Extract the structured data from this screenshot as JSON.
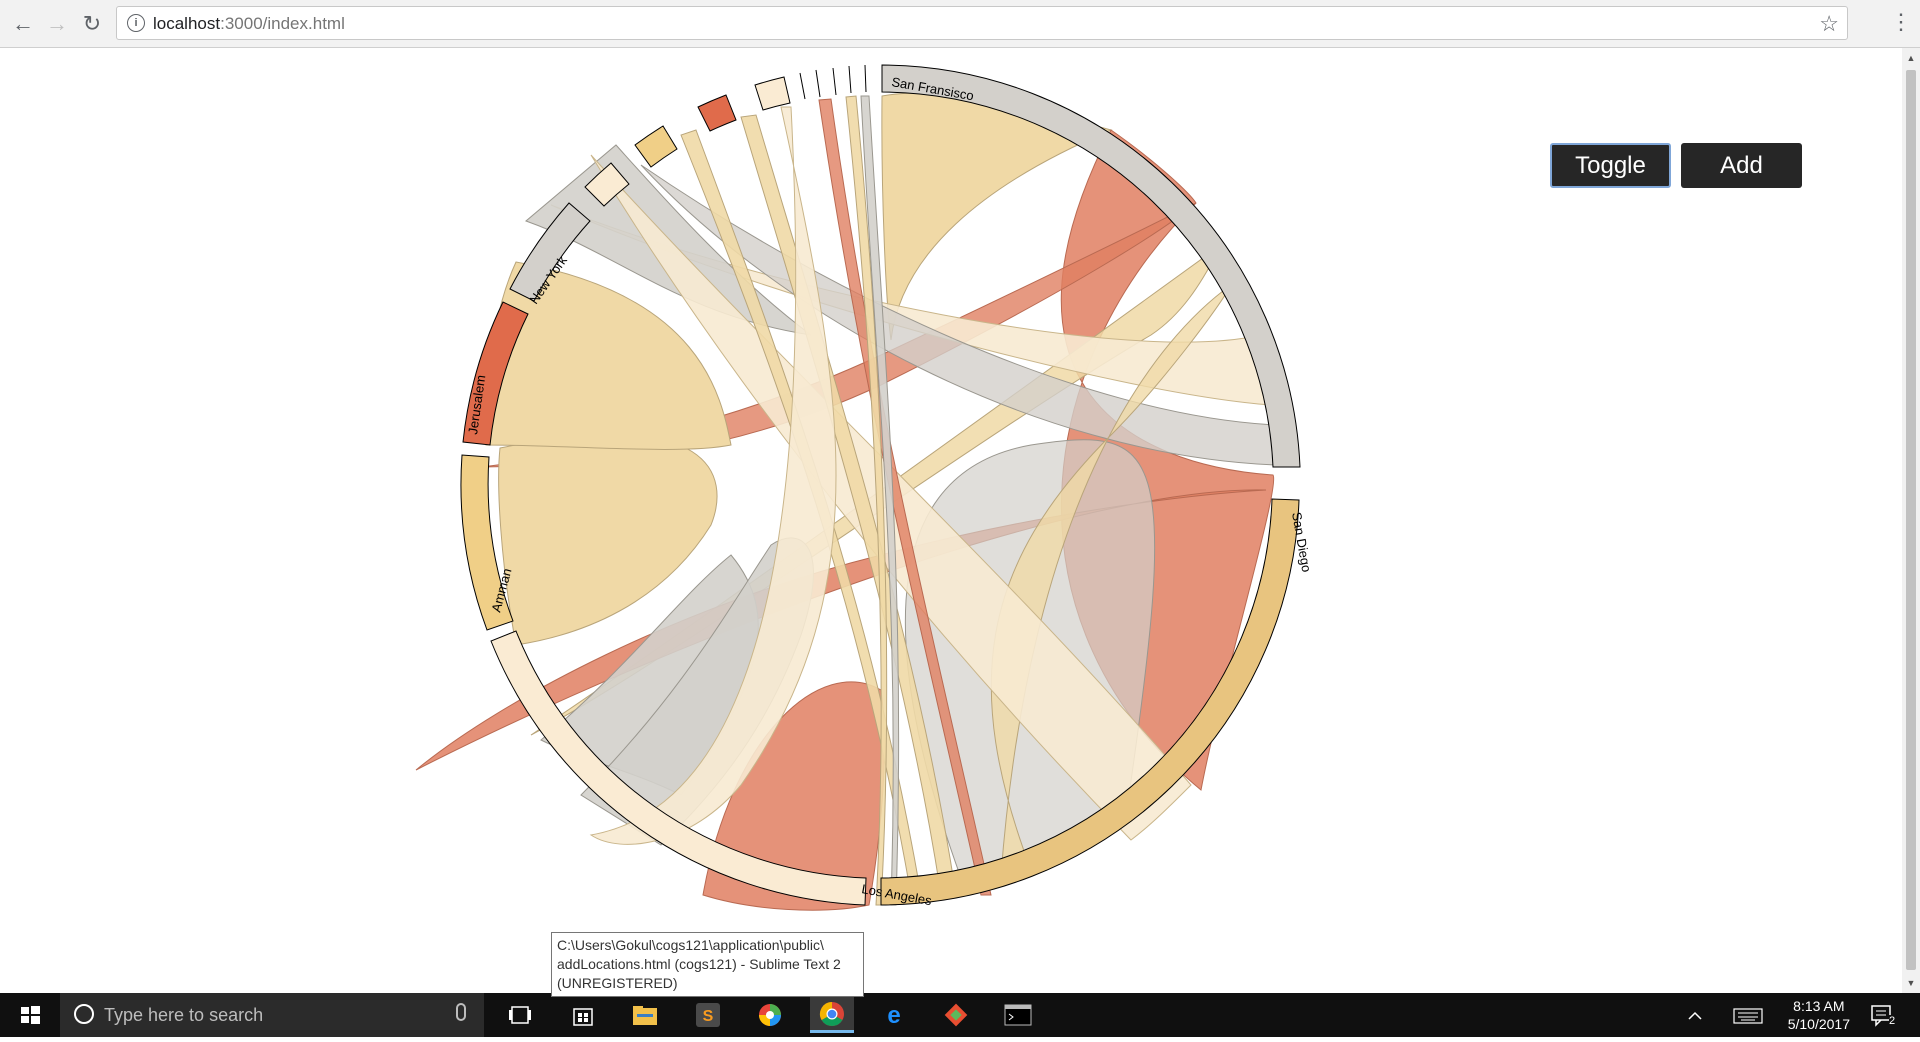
{
  "browser": {
    "url_host": "localhost",
    "url_path": ":3000/index.html"
  },
  "buttons": {
    "toggle_label": "Toggle",
    "add_label": "Add"
  },
  "chord": {
    "groups": [
      {
        "label": "San Fransisco",
        "color": "#d3d0cb"
      },
      {
        "label": "San Diego",
        "color": "#e8c47f"
      },
      {
        "label": "Los Angeles",
        "color": "#faebd3"
      },
      {
        "label": "Amman",
        "color": "#f0cf87"
      },
      {
        "label": "Jerusalem",
        "color": "#e06b4b"
      },
      {
        "label": "New York",
        "color": "#d3d0cb"
      }
    ]
  },
  "tooltip": {
    "line1": "C:\\Users\\Gokul\\cogs121\\application\\public\\",
    "line2": "addLocations.html (cogs121) - Sublime Text 2",
    "line3": "(UNREGISTERED)"
  },
  "taskbar": {
    "search_placeholder": "Type here to search",
    "time": "8:13 AM",
    "date": "5/10/2017",
    "notification_count": "2"
  }
}
